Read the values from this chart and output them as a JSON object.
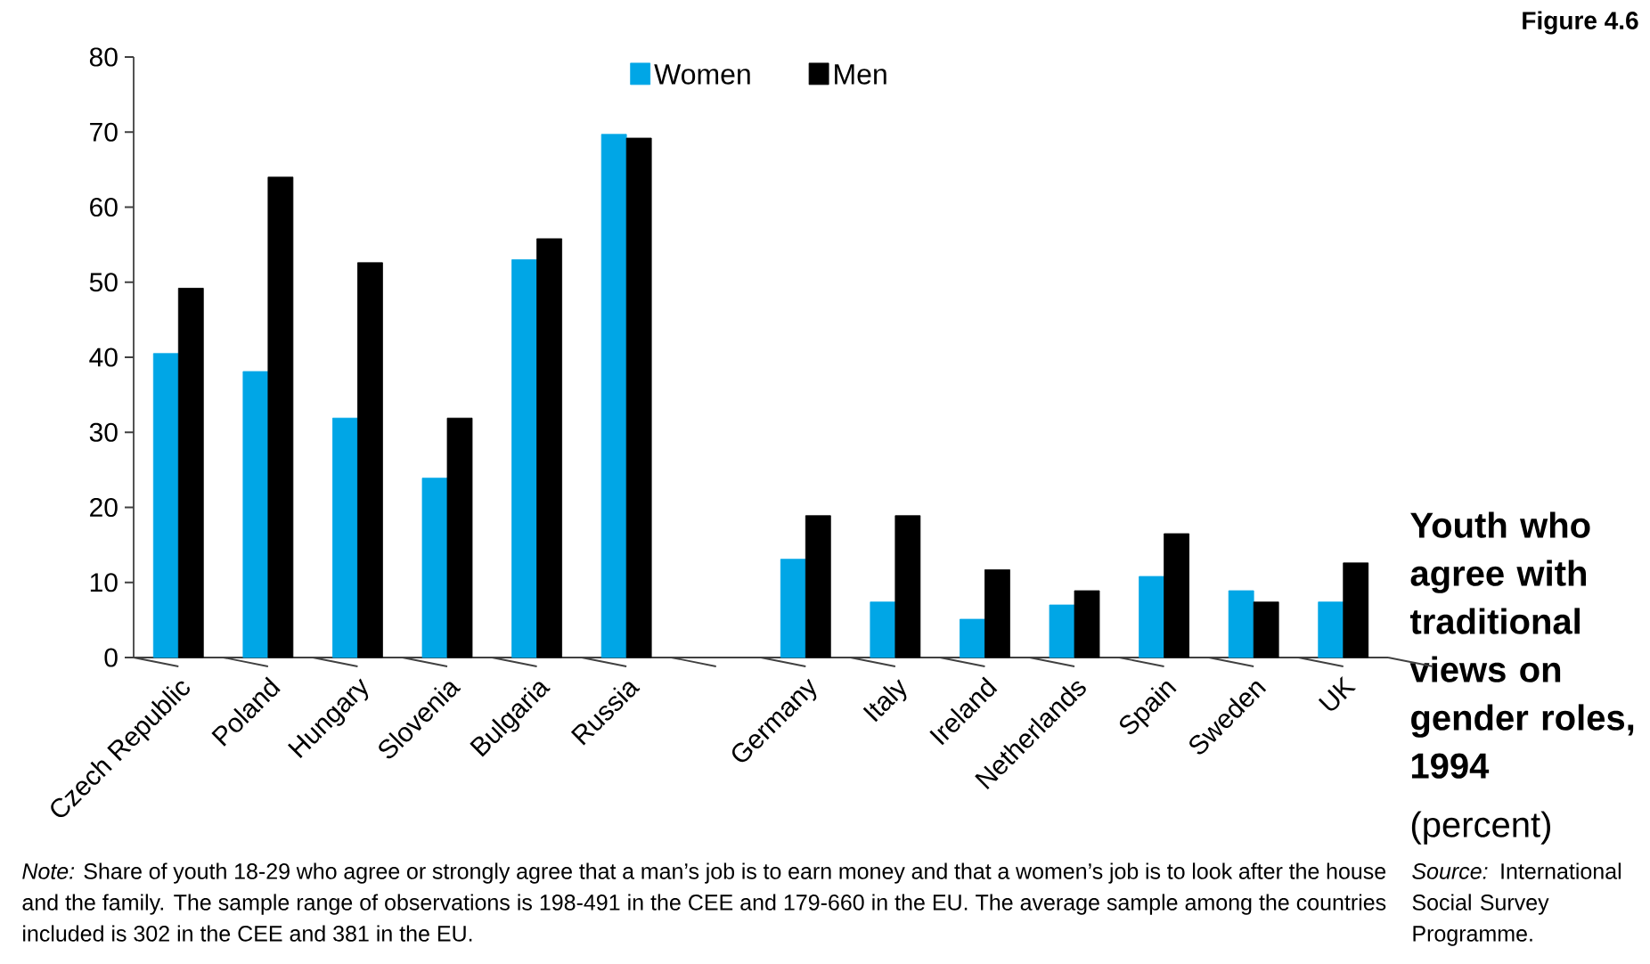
{
  "chart_data": {
    "type": "bar",
    "title": "Youth who agree with traditional views on gender roles, 1994",
    "subtitle": "(percent)",
    "categories": [
      "Czech Republic",
      "Poland",
      "Hungary",
      "Slovenia",
      "Bulgaria",
      "Russia",
      null,
      "Germany",
      "Italy",
      "Ireland",
      "Netherlands",
      "Spain",
      "Sweden",
      "UK"
    ],
    "series": [
      {
        "name": "Women",
        "color": "#00a6e6",
        "values": [
          40.5,
          38.1,
          31.9,
          23.9,
          53.0,
          69.7,
          null,
          13.1,
          7.4,
          5.1,
          7.0,
          10.8,
          8.9,
          7.4
        ]
      },
      {
        "name": "Men",
        "color": "#000000",
        "values": [
          49.2,
          64.0,
          52.6,
          31.9,
          55.8,
          69.2,
          null,
          18.9,
          18.9,
          11.7,
          8.9,
          16.5,
          7.4,
          12.6
        ]
      }
    ],
    "ylim": [
      0,
      80
    ],
    "yticks": [
      0,
      10,
      20,
      30,
      40,
      50,
      60,
      70,
      80
    ],
    "legend": "top",
    "annotations": [
      "Figure 4.6",
      "*Note:* Share of youth 18-29 who agree or strongly agree that a man’s job is to earn money and that a women’s job is to look after the house and the family. The sample range of observations is 198-491 in the CEE and 179-660 in the EU. The average sample among the countries included is 302 in the CEE and 381 in the EU.",
      "*Source:* International Social Survey Programme."
    ]
  }
}
